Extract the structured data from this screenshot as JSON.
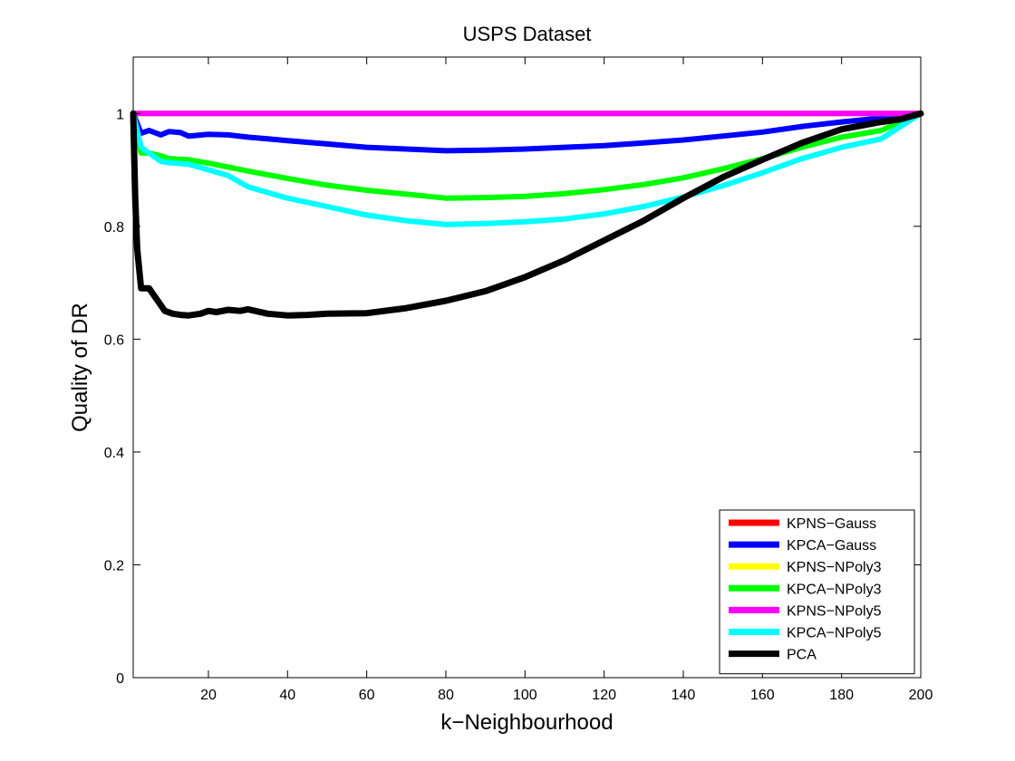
{
  "chart_data": {
    "type": "line",
    "title": "USPS Dataset",
    "xlabel": "k−Neighbourhood",
    "ylabel": "Quality of DR",
    "xlim": [
      1,
      200
    ],
    "ylim": [
      0,
      1.1
    ],
    "xticks": [
      20,
      40,
      60,
      80,
      100,
      120,
      140,
      160,
      180,
      200
    ],
    "yticks": [
      0,
      0.2,
      0.4,
      0.6,
      0.8,
      1
    ],
    "ytick_labels": [
      "0",
      "0.2",
      "0.4",
      "0.6",
      "0.8",
      "1"
    ],
    "grid": false,
    "legend_position": "bottom-right",
    "series": [
      {
        "name": "KPNS−Gauss",
        "color": "#ff0000",
        "x": [
          1,
          200
        ],
        "y": [
          1.0,
          1.0
        ]
      },
      {
        "name": "KPCA−Gauss",
        "color": "#0000ff",
        "x": [
          1,
          3,
          5,
          8,
          10,
          13,
          15,
          20,
          25,
          30,
          35,
          40,
          50,
          60,
          70,
          80,
          90,
          100,
          110,
          120,
          130,
          140,
          150,
          160,
          170,
          180,
          190,
          200
        ],
        "y": [
          1.0,
          0.965,
          0.97,
          0.962,
          0.968,
          0.966,
          0.96,
          0.963,
          0.962,
          0.958,
          0.955,
          0.952,
          0.946,
          0.94,
          0.937,
          0.934,
          0.935,
          0.937,
          0.94,
          0.943,
          0.948,
          0.953,
          0.96,
          0.967,
          0.977,
          0.985,
          0.992,
          1.0
        ]
      },
      {
        "name": "KPNS−NPoly3",
        "color": "#ffff00",
        "x": [
          1,
          200
        ],
        "y": [
          1.0,
          1.0
        ]
      },
      {
        "name": "KPCA−NPoly3",
        "color": "#00ff00",
        "x": [
          1,
          3,
          5,
          8,
          10,
          15,
          20,
          25,
          30,
          40,
          50,
          60,
          70,
          80,
          90,
          100,
          110,
          120,
          130,
          140,
          150,
          160,
          170,
          180,
          190,
          200
        ],
        "y": [
          1.0,
          0.93,
          0.93,
          0.925,
          0.92,
          0.918,
          0.912,
          0.905,
          0.898,
          0.885,
          0.873,
          0.864,
          0.857,
          0.85,
          0.851,
          0.853,
          0.858,
          0.865,
          0.874,
          0.886,
          0.902,
          0.92,
          0.94,
          0.958,
          0.97,
          1.0
        ]
      },
      {
        "name": "KPNS−NPoly5",
        "color": "#ff00ff",
        "x": [
          1,
          200
        ],
        "y": [
          1.0,
          1.0
        ]
      },
      {
        "name": "KPCA−NPoly5",
        "color": "#00ffff",
        "x": [
          1,
          3,
          5,
          8,
          10,
          15,
          20,
          25,
          30,
          40,
          50,
          60,
          70,
          80,
          90,
          100,
          110,
          120,
          130,
          140,
          150,
          160,
          170,
          180,
          190,
          200
        ],
        "y": [
          1.0,
          0.94,
          0.93,
          0.915,
          0.913,
          0.91,
          0.9,
          0.89,
          0.87,
          0.85,
          0.835,
          0.82,
          0.81,
          0.803,
          0.805,
          0.808,
          0.813,
          0.822,
          0.835,
          0.852,
          0.872,
          0.895,
          0.92,
          0.94,
          0.955,
          1.0
        ]
      },
      {
        "name": "PCA",
        "color": "#000000",
        "x": [
          1,
          1.5,
          2,
          3,
          5,
          7,
          9,
          11,
          13,
          15,
          18,
          20,
          22,
          25,
          28,
          30,
          35,
          40,
          45,
          50,
          60,
          70,
          80,
          90,
          100,
          110,
          120,
          130,
          140,
          150,
          160,
          170,
          180,
          190,
          195,
          200
        ],
        "y": [
          1.0,
          0.85,
          0.76,
          0.69,
          0.69,
          0.67,
          0.65,
          0.645,
          0.643,
          0.642,
          0.645,
          0.65,
          0.648,
          0.652,
          0.65,
          0.653,
          0.645,
          0.642,
          0.643,
          0.645,
          0.646,
          0.655,
          0.668,
          0.685,
          0.71,
          0.74,
          0.775,
          0.81,
          0.85,
          0.887,
          0.918,
          0.948,
          0.972,
          0.985,
          0.99,
          1.0
        ]
      }
    ]
  }
}
